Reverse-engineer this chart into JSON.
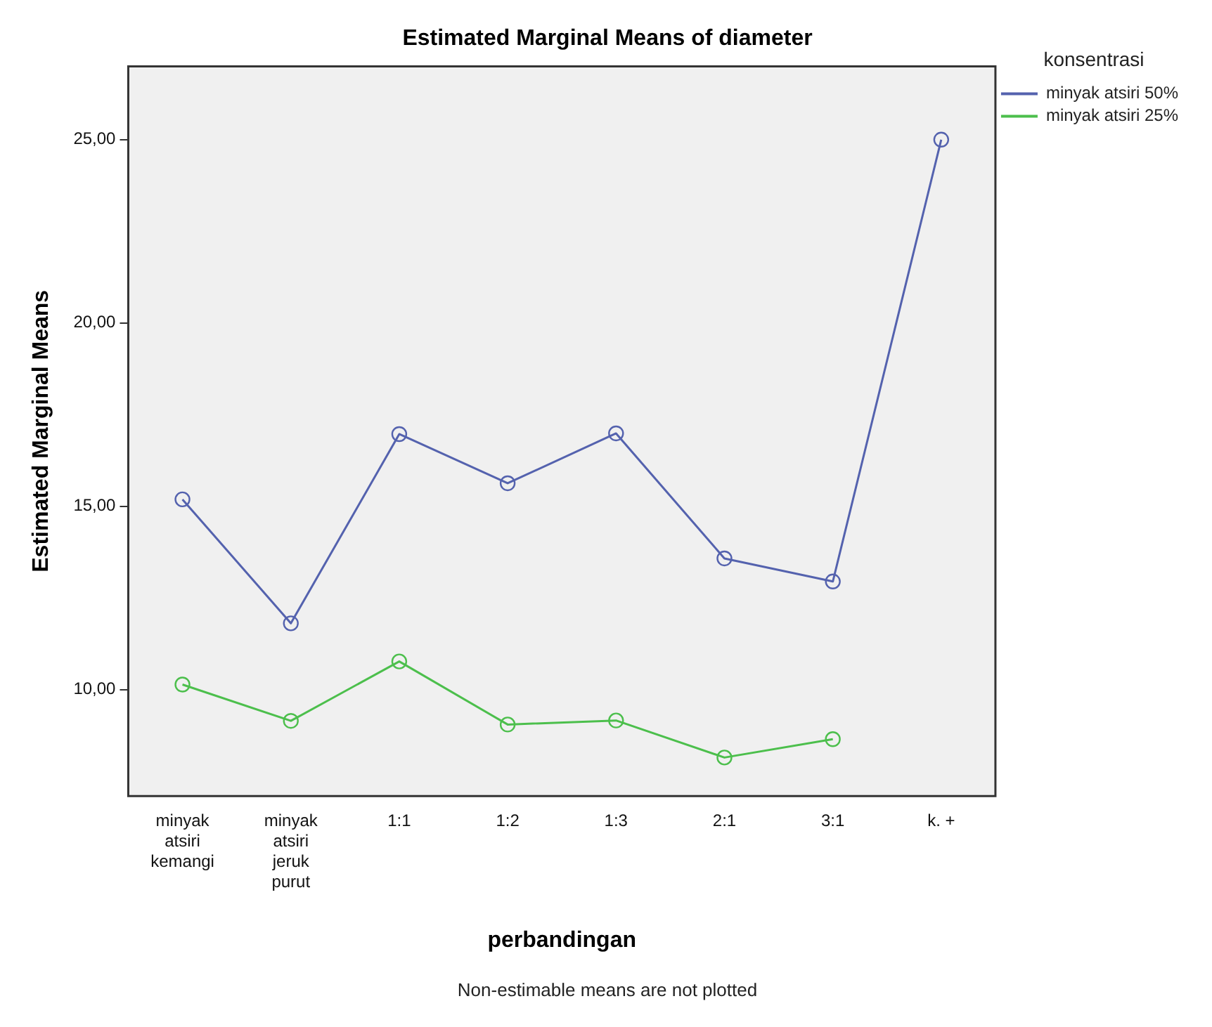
{
  "chart_data": {
    "type": "line",
    "title": "Estimated Marginal Means of diameter",
    "xlabel": "perbandingan",
    "ylabel": "Estimated Marginal Means",
    "legend_title": "konsentrasi",
    "annotations": [
      "Non-estimable means are not plotted"
    ],
    "categories": [
      "minyak atsiri kemangi",
      "minyak atsiri jeruk purut",
      "1:1",
      "1:2",
      "1:3",
      "2:1",
      "3:1",
      "k. +"
    ],
    "series": [
      {
        "name": "minyak atsiri 50%",
        "color": "#5462ae",
        "values": [
          15.19,
          11.81,
          16.97,
          15.63,
          16.99,
          13.58,
          12.95,
          25.0
        ]
      },
      {
        "name": "minyak atsiri 25%",
        "color": "#4cbf4c",
        "values": [
          10.14,
          9.15,
          10.77,
          9.05,
          9.16,
          8.15,
          8.65,
          null
        ]
      }
    ],
    "ylim": [
      7.1,
      27
    ],
    "yticks": [
      {
        "value": 10,
        "label": "10,00"
      },
      {
        "value": 15,
        "label": "15,00"
      },
      {
        "value": 20,
        "label": "20,00"
      },
      {
        "value": 25,
        "label": "25,00"
      }
    ],
    "marker": "circle",
    "line_style": "solid",
    "grid": false,
    "legend": "top right"
  }
}
